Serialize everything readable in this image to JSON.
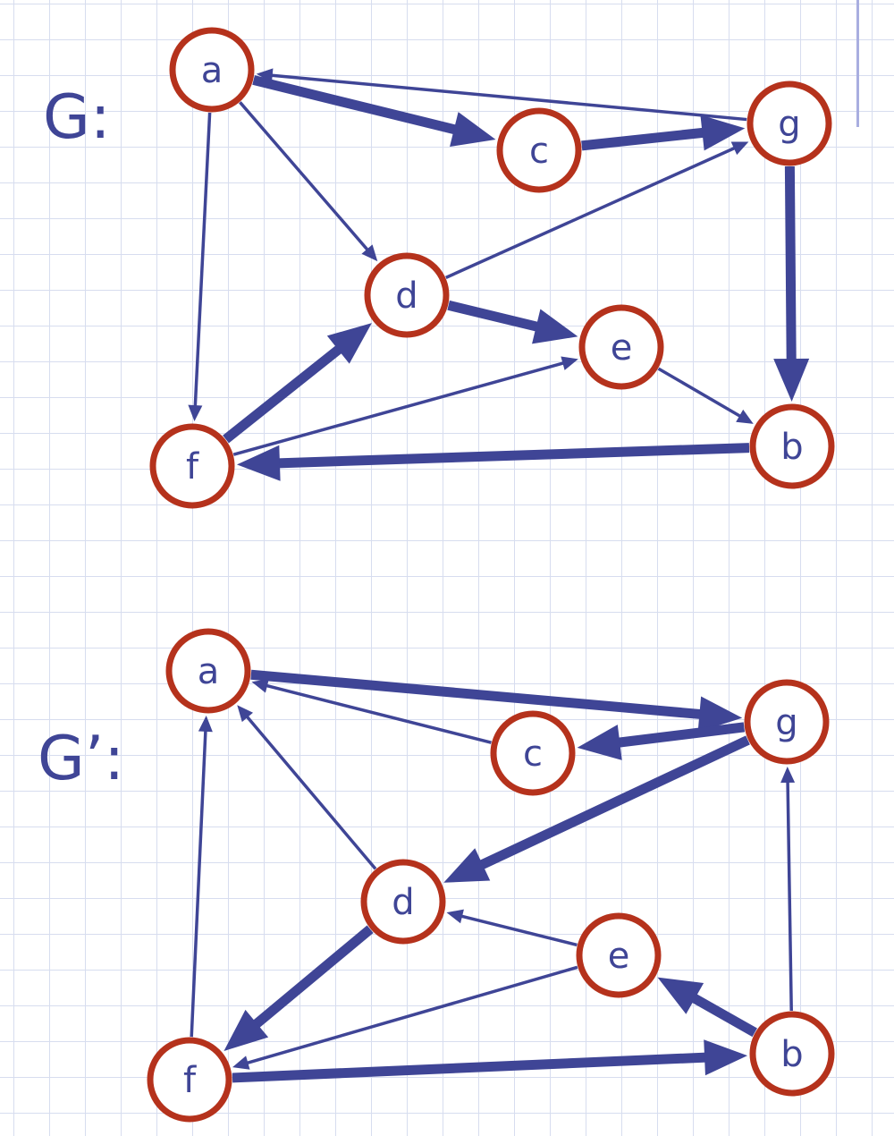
{
  "graphs": [
    {
      "label": "G:",
      "nodes": [
        {
          "id": "a",
          "label": "a"
        },
        {
          "id": "c",
          "label": "c"
        },
        {
          "id": "g",
          "label": "g"
        },
        {
          "id": "d",
          "label": "d"
        },
        {
          "id": "e",
          "label": "e"
        },
        {
          "id": "f",
          "label": "f"
        },
        {
          "id": "b",
          "label": "b"
        }
      ],
      "edges": [
        {
          "from": "a",
          "to": "c",
          "bold": true
        },
        {
          "from": "c",
          "to": "g",
          "bold": true
        },
        {
          "from": "g",
          "to": "a",
          "bold": false
        },
        {
          "from": "a",
          "to": "d",
          "bold": false
        },
        {
          "from": "a",
          "to": "f",
          "bold": false
        },
        {
          "from": "d",
          "to": "g",
          "bold": false
        },
        {
          "from": "d",
          "to": "e",
          "bold": true
        },
        {
          "from": "g",
          "to": "b",
          "bold": true
        },
        {
          "from": "f",
          "to": "d",
          "bold": true
        },
        {
          "from": "f",
          "to": "e",
          "bold": false
        },
        {
          "from": "e",
          "to": "b",
          "bold": false
        },
        {
          "from": "b",
          "to": "f",
          "bold": true
        }
      ]
    },
    {
      "label": "G’:",
      "nodes": [
        {
          "id": "a",
          "label": "a"
        },
        {
          "id": "g",
          "label": "g"
        },
        {
          "id": "c",
          "label": "c"
        },
        {
          "id": "d",
          "label": "d"
        },
        {
          "id": "e",
          "label": "e"
        },
        {
          "id": "f",
          "label": "f"
        },
        {
          "id": "b",
          "label": "b"
        }
      ],
      "edges": [
        {
          "from": "a",
          "to": "g",
          "bold": true
        },
        {
          "from": "c",
          "to": "a",
          "bold": false
        },
        {
          "from": "g",
          "to": "c",
          "bold": true
        },
        {
          "from": "g",
          "to": "d",
          "bold": true
        },
        {
          "from": "d",
          "to": "a",
          "bold": false
        },
        {
          "from": "f",
          "to": "a",
          "bold": false
        },
        {
          "from": "e",
          "to": "d",
          "bold": false
        },
        {
          "from": "d",
          "to": "f",
          "bold": true
        },
        {
          "from": "e",
          "to": "f",
          "bold": false
        },
        {
          "from": "b",
          "to": "e",
          "bold": true
        },
        {
          "from": "b",
          "to": "g",
          "bold": false
        },
        {
          "from": "f",
          "to": "b",
          "bold": true
        }
      ]
    }
  ],
  "colors": {
    "edge": "#3f4596",
    "node_border": "#b5321c",
    "text": "#3f4596"
  }
}
